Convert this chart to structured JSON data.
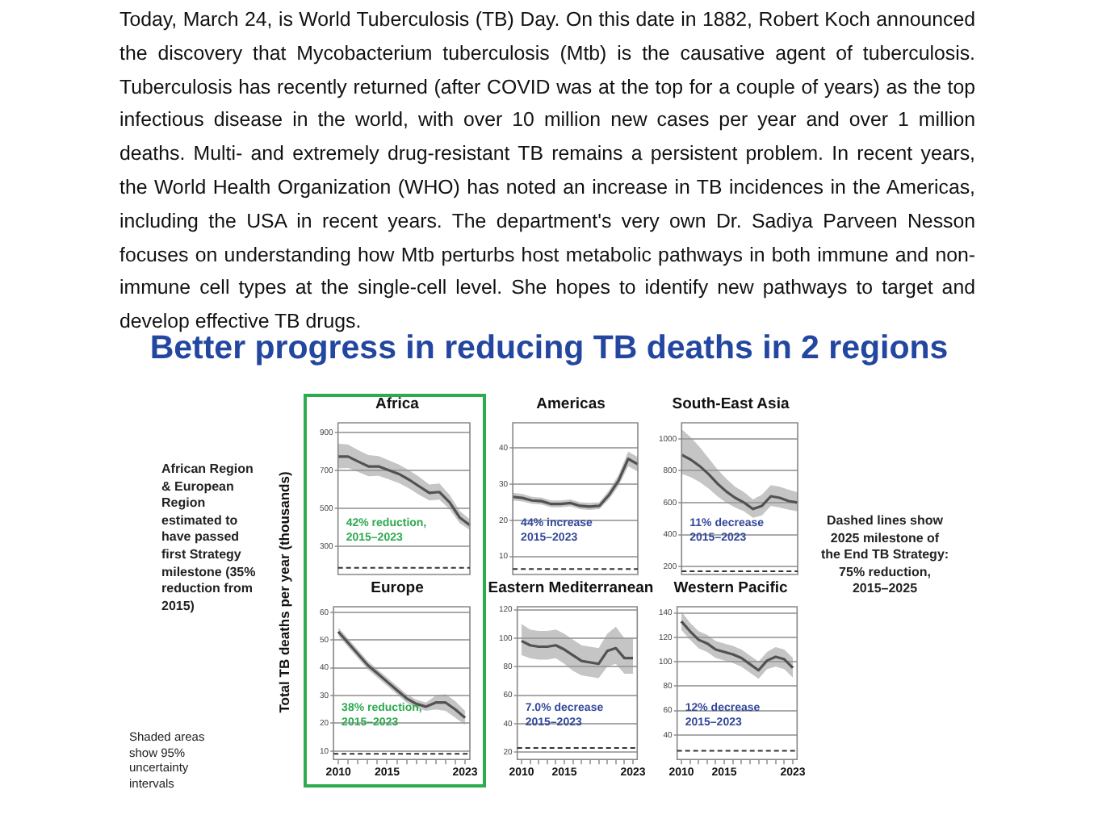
{
  "chart_data": [
    {
      "type": "other",
      "title": "Better progress in reducing TB deaths in 2 regions",
      "annotations": [
        "Today, March 24, is World Tuberculosis (TB) Day.  On this date in 1882, Robert Koch announced the discovery that Mycobacterium tuberculosis (Mtb) is the causative agent of tuberculosis.  Tuberculosis has recently returned (after COVID was at the top for a couple of years) as the top infectious disease in the world, with over 10 million new cases per year and over 1 million deaths.  Multi- and extremely drug-resistant TB remains a persistent problem. In recent years, the World Health Organization (WHO) has noted an increase in TB incidences in the Americas, including the USA in recent years. The department's very own Dr. Sadiya Parveen Nesson focuses on understanding how Mtb perturbs host metabolic pathways in both immune and non-immune cell types at the single-cell level.  She hopes to identify new pathways to target and develop effective TB drugs.",
        "African Region & European Region estimated to have passed first Strategy milestone (35% reduction from 2015)",
        "Shaded areas show 95% uncertainty intervals",
        "Dashed lines show 2025 milestone of the End TB Strategy: 75% reduction, 2015–2025"
      ]
    },
    {
      "type": "line",
      "title": "Africa",
      "ylabel": "Total TB deaths per year (thousands)",
      "categories": [
        null,
        null,
        null,
        null,
        null,
        null,
        null,
        null,
        null,
        null,
        null,
        null,
        null,
        null
      ],
      "series": [
        {
          "color": "#000000",
          "values": [
            772,
            772,
            745,
            720,
            720,
            700,
            680,
            650,
            615,
            580,
            585,
            530,
            450,
            410
          ],
          "lower": [
            710,
            712,
            690,
            668,
            670,
            652,
            632,
            604,
            570,
            540,
            545,
            495,
            420,
            385
          ],
          "upper": [
            840,
            835,
            805,
            780,
            775,
            752,
            730,
            700,
            665,
            625,
            630,
            570,
            485,
            440
          ]
        }
      ],
      "ylim": [
        150,
        950
      ],
      "yticks": [
        300,
        500,
        700,
        900
      ],
      "tick_labels": "y",
      "grid": "y",
      "ref_lines": [
        {
          "axis": "y",
          "value": 185,
          "line_style": "dashed"
        }
      ],
      "annotations": [
        "42% reduction, 2015–2023"
      ]
    },
    {
      "type": "line",
      "title": "Americas",
      "categories": [
        null,
        null,
        null,
        null,
        null,
        null,
        null,
        null,
        null,
        null,
        null,
        null,
        null,
        null
      ],
      "series": [
        {
          "color": "#000000",
          "values": [
            26.5,
            26.2,
            25.5,
            25.3,
            24.5,
            24.5,
            24.8,
            24,
            23.8,
            24,
            27,
            31,
            37,
            35.5
          ],
          "lower": [
            25.5,
            25.2,
            24.6,
            24.4,
            23.6,
            23.6,
            23.9,
            23.1,
            22.9,
            23.1,
            25.8,
            29.5,
            35,
            33.5
          ],
          "upper": [
            27.6,
            27.3,
            26.5,
            26.3,
            25.5,
            25.5,
            25.8,
            25,
            24.8,
            25,
            28.3,
            32.6,
            39,
            37.5
          ]
        }
      ],
      "ylim": [
        5,
        47
      ],
      "yticks": [
        10,
        20,
        30,
        40
      ],
      "tick_labels": "y",
      "grid": "y",
      "ref_lines": [
        {
          "axis": "y",
          "value": 6.5,
          "line_style": "dashed"
        }
      ],
      "annotations": [
        "44% increase 2015–2023"
      ]
    },
    {
      "type": "line",
      "title": "South-East Asia",
      "categories": [
        null,
        null,
        null,
        null,
        null,
        null,
        null,
        null,
        null,
        null,
        null,
        null,
        null,
        null
      ],
      "series": [
        {
          "color": "#000000",
          "values": [
            900,
            870,
            830,
            780,
            720,
            670,
            630,
            600,
            560,
            580,
            640,
            630,
            610,
            600
          ],
          "lower": [
            780,
            760,
            730,
            690,
            640,
            600,
            570,
            545,
            505,
            520,
            580,
            570,
            555,
            545
          ],
          "upper": [
            1060,
            1010,
            950,
            880,
            810,
            750,
            700,
            665,
            620,
            650,
            710,
            700,
            680,
            665
          ]
        }
      ],
      "ylim": [
        150,
        1100
      ],
      "yticks": [
        200,
        400,
        600,
        800,
        1000
      ],
      "tick_labels": "y",
      "grid": "y",
      "ref_lines": [
        {
          "axis": "y",
          "value": 170,
          "line_style": "dashed"
        }
      ],
      "annotations": [
        "11% decrease 2015–2023"
      ]
    },
    {
      "type": "line",
      "title": "Europe",
      "x": [
        2010,
        2011,
        2012,
        2013,
        2014,
        2015,
        2016,
        2017,
        2018,
        2019,
        2020,
        2021,
        2022,
        2023
      ],
      "series": [
        {
          "color": "#000000",
          "values": [
            53,
            49,
            45,
            41,
            38,
            35,
            32,
            29,
            27,
            26,
            27.5,
            27.5,
            25,
            22
          ],
          "lower": [
            51.5,
            47.5,
            43.5,
            39.5,
            36.5,
            33.5,
            30.5,
            27.5,
            25.5,
            24.5,
            25,
            24.5,
            22,
            19.5
          ],
          "upper": [
            54.5,
            50.5,
            46.5,
            42.5,
            39.5,
            36.5,
            33.5,
            30.5,
            28.5,
            27.5,
            30,
            30.5,
            28,
            24.5
          ]
        }
      ],
      "xlim": [
        2009.5,
        2023.5
      ],
      "xticks": [
        {
          "value": 2010,
          "label": "2010"
        },
        {
          "value": 2011,
          "label": null
        },
        {
          "value": 2012,
          "label": null
        },
        {
          "value": 2013,
          "label": null
        },
        {
          "value": 2014,
          "label": null
        },
        {
          "value": 2015,
          "label": "2015"
        },
        {
          "value": 2016,
          "label": null
        },
        {
          "value": 2017,
          "label": null
        },
        {
          "value": 2018,
          "label": null
        },
        {
          "value": 2019,
          "label": null
        },
        {
          "value": 2020,
          "label": null
        },
        {
          "value": 2021,
          "label": null
        },
        {
          "value": 2022,
          "label": null
        },
        {
          "value": 2023,
          "label": "2023"
        }
      ],
      "ylim": [
        7,
        62
      ],
      "yticks": [
        10,
        20,
        30,
        40,
        50,
        60
      ],
      "grid": "y",
      "ref_lines": [
        {
          "axis": "y",
          "value": 9,
          "line_style": "dashed"
        }
      ],
      "annotations": [
        "38% reduction, 2015–2023"
      ]
    },
    {
      "type": "line",
      "title": "Eastern Mediterranean",
      "x": [
        2010,
        2011,
        2012,
        2013,
        2014,
        2015,
        2016,
        2017,
        2018,
        2019,
        2020,
        2021,
        2022,
        2023
      ],
      "series": [
        {
          "color": "#000000",
          "values": [
            98,
            95,
            94,
            94,
            95,
            92,
            88,
            84,
            83,
            82,
            91,
            93,
            86,
            86
          ],
          "lower": [
            88,
            86,
            85,
            85,
            86,
            82,
            77,
            74,
            73,
            72,
            80,
            82,
            75,
            75
          ],
          "upper": [
            110,
            106,
            105,
            105,
            106,
            103,
            99,
            95,
            94,
            93,
            103,
            108,
            100,
            100
          ]
        }
      ],
      "xlim": [
        2009.5,
        2023.5
      ],
      "xticks": [
        {
          "value": 2010,
          "label": "2010"
        },
        {
          "value": 2011,
          "label": null
        },
        {
          "value": 2012,
          "label": null
        },
        {
          "value": 2013,
          "label": null
        },
        {
          "value": 2014,
          "label": null
        },
        {
          "value": 2015,
          "label": "2015"
        },
        {
          "value": 2016,
          "label": null
        },
        {
          "value": 2017,
          "label": null
        },
        {
          "value": 2018,
          "label": null
        },
        {
          "value": 2019,
          "label": null
        },
        {
          "value": 2020,
          "label": null
        },
        {
          "value": 2021,
          "label": null
        },
        {
          "value": 2022,
          "label": null
        },
        {
          "value": 2023,
          "label": "2023"
        }
      ],
      "ylim": [
        15,
        122
      ],
      "yticks": [
        20,
        40,
        60,
        80,
        100,
        120
      ],
      "grid": "y",
      "ref_lines": [
        {
          "axis": "y",
          "value": 23,
          "line_style": "dashed"
        }
      ],
      "annotations": [
        "7.0% decrease 2015–2023"
      ]
    },
    {
      "type": "line",
      "title": "Western Pacific",
      "x": [
        2010,
        2011,
        2012,
        2013,
        2014,
        2015,
        2016,
        2017,
        2018,
        2019,
        2020,
        2021,
        2022,
        2023
      ],
      "series": [
        {
          "color": "#000000",
          "values": [
            133,
            125,
            118,
            115,
            110,
            108,
            106,
            103,
            98,
            93,
            101,
            104,
            102,
            95
          ],
          "lower": [
            126,
            118,
            111,
            108,
            103,
            101,
            99,
            96,
            91,
            86,
            94,
            96,
            94,
            87
          ],
          "upper": [
            141,
            132,
            125,
            122,
            117,
            115,
            113,
            110,
            105,
            100,
            108,
            112,
            110,
            103
          ]
        }
      ],
      "xlim": [
        2009.5,
        2023.5
      ],
      "xticks": [
        {
          "value": 2010,
          "label": "2010"
        },
        {
          "value": 2011,
          "label": null
        },
        {
          "value": 2012,
          "label": null
        },
        {
          "value": 2013,
          "label": null
        },
        {
          "value": 2014,
          "label": null
        },
        {
          "value": 2015,
          "label": "2015"
        },
        {
          "value": 2016,
          "label": null
        },
        {
          "value": 2017,
          "label": null
        },
        {
          "value": 2018,
          "label": null
        },
        {
          "value": 2019,
          "label": null
        },
        {
          "value": 2020,
          "label": null
        },
        {
          "value": 2021,
          "label": null
        },
        {
          "value": 2022,
          "label": null
        },
        {
          "value": 2023,
          "label": "2023"
        }
      ],
      "ylim": [
        20,
        145
      ],
      "yticks": [
        40,
        60,
        80,
        100,
        120,
        140
      ],
      "grid": "y",
      "ref_lines": [
        {
          "axis": "y",
          "value": 27,
          "line_style": "dashed"
        }
      ],
      "annotations": [
        "12% decrease 2015–2023"
      ]
    }
  ]
}
